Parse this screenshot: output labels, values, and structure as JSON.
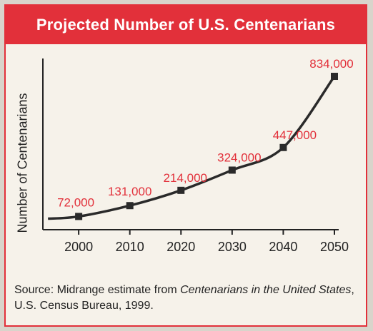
{
  "chart_data": {
    "type": "line",
    "title": "Projected Number of U.S. Centenarians",
    "ylabel": "Number of Centenarians",
    "xlabel": "",
    "x": [
      2000,
      2010,
      2020,
      2030,
      2040,
      2050
    ],
    "series": [
      {
        "values": [
          72000,
          131000,
          214000,
          324000,
          447000,
          834000
        ]
      }
    ],
    "data_labels": [
      "72,000",
      "131,000",
      "214,000",
      "324,000",
      "447,000",
      "834,000"
    ],
    "x_tick_labels": [
      "2000",
      "2010",
      "2020",
      "2030",
      "2040",
      "2050"
    ],
    "ylim": [
      0,
      900000
    ],
    "grid": false,
    "colors": {
      "accent": "#e2303a",
      "line": "#2a2a2a",
      "label": "#e2303a"
    }
  },
  "source": {
    "prefix": "Source: Midrange estimate from ",
    "italic": "Centenarians in the United States",
    "suffix": ", U.S. Census Bureau, 1999."
  }
}
